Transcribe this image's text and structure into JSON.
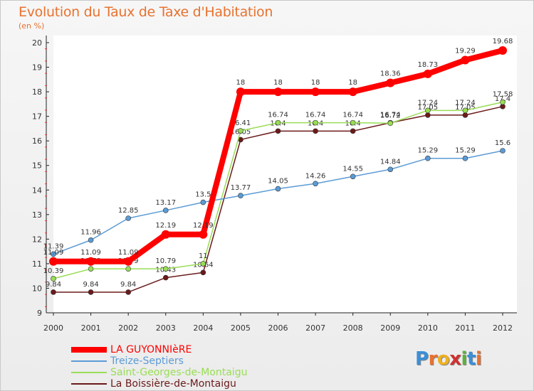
{
  "title": "Evolution du Taux de Taxe d'Habitation",
  "unit": "(en %)",
  "logo": {
    "text": "Proxiti",
    "letters": [
      "P",
      "r",
      "o",
      "x",
      "i",
      "t",
      "i"
    ],
    "colors": [
      "#3a8fd8",
      "#e8722f",
      "#f0b020",
      "#d03030",
      "#60b040",
      "#3a8fd8",
      "#e8722f"
    ]
  },
  "chart_data": {
    "type": "line",
    "title": "Evolution du Taux de Taxe d'Habitation",
    "ylabel": "(en %)",
    "xlabel": "",
    "ylim": [
      9,
      20
    ],
    "yticks": [
      9,
      10,
      11,
      12,
      13,
      14,
      15,
      16,
      17,
      18,
      19,
      20
    ],
    "categories": [
      "2000",
      "2001",
      "2002",
      "2003",
      "2004",
      "2005",
      "2006",
      "2007",
      "2008",
      "2009",
      "2010",
      "2011",
      "2012"
    ],
    "series": [
      {
        "name": "La Boissière-de-Montaigu",
        "color": "#6b1a1a",
        "values": [
          9.84,
          9.84,
          9.84,
          10.43,
          10.64,
          16.05,
          16.4,
          16.4,
          16.4,
          16.74,
          17.05,
          17.05,
          17.4
        ],
        "labels": [
          "9.84",
          "9.84",
          "9.84",
          "10.43",
          "10.64",
          "16.05",
          "16.4",
          "16.4",
          "16.4",
          "16.74",
          "17.05",
          "17.05",
          "17.4"
        ]
      },
      {
        "name": "Saint-Georges-de-Montaigu",
        "color": "#99dd55",
        "values": [
          10.39,
          10.79,
          10.79,
          10.79,
          11,
          16.41,
          16.74,
          16.74,
          16.74,
          16.72,
          17.24,
          17.24,
          17.58
        ],
        "labels": [
          "10.39",
          "10.79",
          "10.79",
          "10.79",
          "11",
          "16.41",
          "16.74",
          "16.74",
          "16.74",
          "16.72",
          "17.24",
          "17.24",
          "17.58"
        ]
      },
      {
        "name": "Treize-Septiers",
        "color": "#5b9bd5",
        "values": [
          11.39,
          11.96,
          12.85,
          13.17,
          13.5,
          13.77,
          14.05,
          14.26,
          14.55,
          14.84,
          15.29,
          15.29,
          15.6
        ],
        "labels": [
          "11.39",
          "11.96",
          "12.85",
          "13.17",
          "13.5",
          "13.77",
          "14.05",
          "14.26",
          "14.55",
          "14.84",
          "15.29",
          "15.29",
          "15.6"
        ]
      },
      {
        "name": "LA GUYONNIèRE",
        "color": "#ff0000",
        "values": [
          11.09,
          11.09,
          11.09,
          12.19,
          12.19,
          18,
          18,
          18,
          18,
          18.36,
          18.73,
          19.29,
          19.68
        ],
        "labels": [
          "11.09",
          "11.09",
          "11.09",
          "12.19",
          "12.19",
          "18",
          "18",
          "18",
          "18",
          "18.36",
          "18.73",
          "19.29",
          "19.68"
        ]
      }
    ],
    "legend": [
      {
        "name": "LA GUYONNIèRE",
        "color": "#ff0000"
      },
      {
        "name": "Treize-Septiers",
        "color": "#5b9bd5"
      },
      {
        "name": "Saint-Georges-de-Montaigu",
        "color": "#99dd55"
      },
      {
        "name": "La Boissière-de-Montaigu",
        "color": "#6b1a1a"
      }
    ],
    "legend_position": "bottom-left",
    "grid": false
  }
}
